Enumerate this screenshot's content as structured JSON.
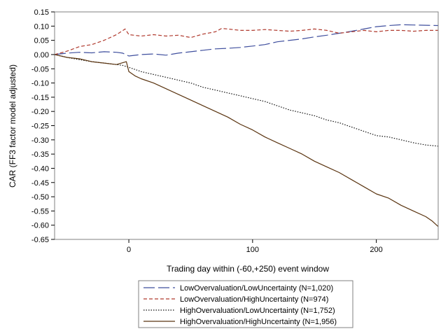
{
  "chart_data": {
    "type": "line",
    "title": "",
    "xlabel": "Trading day within (-60,+250) event window",
    "ylabel": "CAR (FF3 factor model adjusted)",
    "xlim": [
      -60,
      250
    ],
    "ylim": [
      -0.65,
      0.15
    ],
    "xticks": [
      0,
      100,
      200
    ],
    "yticks": [
      0.15,
      0.1,
      0.05,
      0.0,
      -0.05,
      -0.1,
      -0.15,
      -0.2,
      -0.25,
      -0.3,
      -0.35,
      -0.4,
      -0.45,
      -0.5,
      -0.55,
      -0.6,
      -0.65
    ],
    "ytick_labels": [
      "0.15",
      "0.10",
      "0.05",
      "0.00",
      "-0.05",
      "-0.10",
      "-0.15",
      "-0.20",
      "-0.25",
      "-0.30",
      "-0.35",
      "-0.40",
      "-0.45",
      "-0.50",
      "-0.55",
      "-0.60",
      "-0.65"
    ],
    "grid": false,
    "legend_position": "bottom",
    "series": [
      {
        "name": "LowOvervaluation/LowUncertainty (N=1,020)",
        "color": "#3f4f9e",
        "dash": "long-dash",
        "points": [
          [
            -60,
            0.0
          ],
          [
            -50,
            0.005
          ],
          [
            -40,
            0.008
          ],
          [
            -30,
            0.006
          ],
          [
            -20,
            0.01
          ],
          [
            -10,
            0.008
          ],
          [
            -5,
            0.005
          ],
          [
            0,
            -0.005
          ],
          [
            10,
            0.0
          ],
          [
            20,
            0.002
          ],
          [
            30,
            -0.002
          ],
          [
            40,
            0.005
          ],
          [
            50,
            0.01
          ],
          [
            60,
            0.015
          ],
          [
            70,
            0.02
          ],
          [
            80,
            0.022
          ],
          [
            90,
            0.025
          ],
          [
            100,
            0.03
          ],
          [
            110,
            0.035
          ],
          [
            120,
            0.045
          ],
          [
            130,
            0.05
          ],
          [
            140,
            0.055
          ],
          [
            150,
            0.062
          ],
          [
            160,
            0.068
          ],
          [
            170,
            0.075
          ],
          [
            180,
            0.082
          ],
          [
            190,
            0.09
          ],
          [
            200,
            0.098
          ],
          [
            210,
            0.102
          ],
          [
            220,
            0.105
          ],
          [
            230,
            0.104
          ],
          [
            240,
            0.103
          ],
          [
            250,
            0.102
          ]
        ]
      },
      {
        "name": "LowOvervaluation/HighUncertainty (N=974)",
        "color": "#b03a2e",
        "dash": "short-dash",
        "points": [
          [
            -60,
            0.0
          ],
          [
            -50,
            0.012
          ],
          [
            -40,
            0.028
          ],
          [
            -30,
            0.035
          ],
          [
            -20,
            0.05
          ],
          [
            -10,
            0.07
          ],
          [
            -3,
            0.09
          ],
          [
            0,
            0.07
          ],
          [
            10,
            0.065
          ],
          [
            20,
            0.07
          ],
          [
            30,
            0.065
          ],
          [
            40,
            0.068
          ],
          [
            50,
            0.06
          ],
          [
            60,
            0.072
          ],
          [
            70,
            0.08
          ],
          [
            75,
            0.092
          ],
          [
            80,
            0.09
          ],
          [
            90,
            0.085
          ],
          [
            100,
            0.085
          ],
          [
            110,
            0.088
          ],
          [
            120,
            0.085
          ],
          [
            130,
            0.082
          ],
          [
            140,
            0.085
          ],
          [
            150,
            0.09
          ],
          [
            160,
            0.085
          ],
          [
            170,
            0.075
          ],
          [
            180,
            0.08
          ],
          [
            190,
            0.085
          ],
          [
            200,
            0.08
          ],
          [
            210,
            0.085
          ],
          [
            220,
            0.085
          ],
          [
            230,
            0.082
          ],
          [
            240,
            0.085
          ],
          [
            250,
            0.085
          ]
        ]
      },
      {
        "name": "HighOvervaluation/LowUncertainty (N=1,752)",
        "color": "#111111",
        "dash": "dotted",
        "points": [
          [
            -60,
            0.0
          ],
          [
            -50,
            -0.01
          ],
          [
            -40,
            -0.018
          ],
          [
            -30,
            -0.025
          ],
          [
            -20,
            -0.03
          ],
          [
            -10,
            -0.035
          ],
          [
            -5,
            -0.038
          ],
          [
            0,
            -0.045
          ],
          [
            10,
            -0.06
          ],
          [
            20,
            -0.07
          ],
          [
            30,
            -0.08
          ],
          [
            40,
            -0.09
          ],
          [
            50,
            -0.1
          ],
          [
            60,
            -0.115
          ],
          [
            70,
            -0.125
          ],
          [
            80,
            -0.135
          ],
          [
            90,
            -0.145
          ],
          [
            100,
            -0.155
          ],
          [
            110,
            -0.165
          ],
          [
            120,
            -0.18
          ],
          [
            130,
            -0.195
          ],
          [
            140,
            -0.205
          ],
          [
            150,
            -0.215
          ],
          [
            160,
            -0.23
          ],
          [
            170,
            -0.24
          ],
          [
            180,
            -0.255
          ],
          [
            190,
            -0.27
          ],
          [
            200,
            -0.285
          ],
          [
            210,
            -0.29
          ],
          [
            220,
            -0.3
          ],
          [
            230,
            -0.31
          ],
          [
            240,
            -0.318
          ],
          [
            250,
            -0.322
          ]
        ]
      },
      {
        "name": "HighOvervaluation/HighUncertainty (N=1,956)",
        "color": "#5a3410",
        "dash": "solid",
        "points": [
          [
            -60,
            0.0
          ],
          [
            -50,
            -0.01
          ],
          [
            -40,
            -0.015
          ],
          [
            -30,
            -0.025
          ],
          [
            -20,
            -0.03
          ],
          [
            -10,
            -0.035
          ],
          [
            -2,
            -0.025
          ],
          [
            0,
            -0.06
          ],
          [
            5,
            -0.075
          ],
          [
            10,
            -0.085
          ],
          [
            20,
            -0.1
          ],
          [
            30,
            -0.12
          ],
          [
            40,
            -0.14
          ],
          [
            50,
            -0.16
          ],
          [
            60,
            -0.18
          ],
          [
            70,
            -0.2
          ],
          [
            80,
            -0.22
          ],
          [
            90,
            -0.245
          ],
          [
            100,
            -0.265
          ],
          [
            110,
            -0.29
          ],
          [
            120,
            -0.31
          ],
          [
            130,
            -0.33
          ],
          [
            140,
            -0.35
          ],
          [
            150,
            -0.375
          ],
          [
            160,
            -0.395
          ],
          [
            170,
            -0.415
          ],
          [
            180,
            -0.44
          ],
          [
            190,
            -0.465
          ],
          [
            200,
            -0.49
          ],
          [
            210,
            -0.505
          ],
          [
            220,
            -0.53
          ],
          [
            230,
            -0.55
          ],
          [
            240,
            -0.57
          ],
          [
            245,
            -0.585
          ],
          [
            250,
            -0.605
          ]
        ]
      }
    ]
  }
}
